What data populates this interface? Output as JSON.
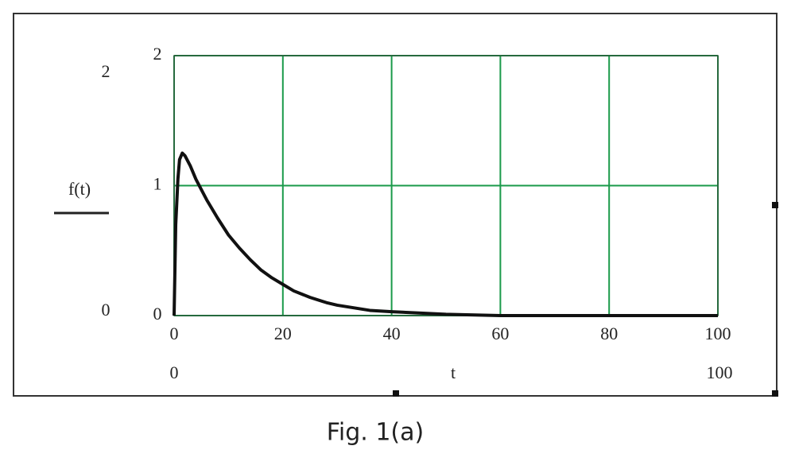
{
  "chart_data": {
    "type": "line",
    "caption": "Fig. 1(a)",
    "ylabel": "f(t)",
    "xlabel": "t",
    "x": [
      0,
      0.3,
      0.7,
      1,
      1.5,
      2,
      3,
      4,
      5,
      6,
      8,
      10,
      12,
      14,
      16,
      18,
      20,
      22,
      25,
      28,
      30,
      33,
      36,
      40,
      45,
      50,
      60,
      70,
      80,
      90,
      100
    ],
    "values": [
      0,
      0.7,
      1.05,
      1.2,
      1.25,
      1.23,
      1.15,
      1.05,
      0.97,
      0.89,
      0.75,
      0.62,
      0.52,
      0.43,
      0.35,
      0.29,
      0.24,
      0.19,
      0.14,
      0.1,
      0.08,
      0.06,
      0.04,
      0.03,
      0.02,
      0.01,
      0,
      0,
      0,
      0,
      0
    ],
    "color": "#111111",
    "grid_color": "#1a9a4a",
    "grid": true,
    "xlim": [
      0,
      100
    ],
    "xticks": [
      0,
      20,
      40,
      60,
      80,
      100
    ],
    "ylim": [
      0,
      2
    ],
    "yticks": [
      0,
      1,
      2
    ]
  }
}
